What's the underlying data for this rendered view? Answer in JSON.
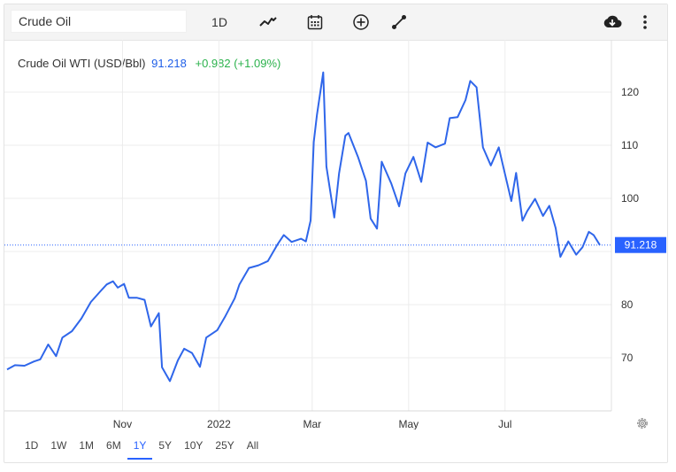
{
  "toolbar": {
    "search_value": "Crude Oil",
    "interval_label": "1D",
    "icons": [
      "line-type-icon",
      "calendar-icon",
      "add-indicator-icon",
      "draw-line-icon",
      "download-icon",
      "more-options-icon"
    ]
  },
  "legend": {
    "name": "Crude Oil WTI (USD/Bbl)",
    "value": "91.218",
    "change": "+0.982 (+1.09%)"
  },
  "colors": {
    "line": "#2f66ea",
    "price_tag": "#2962ff",
    "change_up": "#2bb24c"
  },
  "range_buttons": [
    "1D",
    "1W",
    "1M",
    "6M",
    "1Y",
    "5Y",
    "10Y",
    "25Y",
    "All"
  ],
  "active_range": "1Y",
  "chart_data": {
    "type": "line",
    "title": "Crude Oil WTI (USD/Bbl)",
    "xlabel": "",
    "ylabel": "",
    "ylim": [
      63.3,
      123.3
    ],
    "y_ticks": [
      70,
      80,
      100,
      110,
      120
    ],
    "y_tick_labels": [
      "70",
      "80",
      "100",
      "110",
      "120"
    ],
    "x_ticks": [
      {
        "label": "Nov",
        "date": "2021-11-01"
      },
      {
        "label": "2022",
        "date": "2022-01-01"
      },
      {
        "label": "Mar",
        "date": "2022-03-01"
      },
      {
        "label": "May",
        "date": "2022-05-01"
      },
      {
        "label": "Jul",
        "date": "2022-07-01"
      }
    ],
    "current_value_label": "91.218",
    "grid": true,
    "series": [
      {
        "name": "Crude Oil WTI",
        "points": [
          [
            "2021-08-20",
            67.8
          ],
          [
            "2021-08-25",
            68.6
          ],
          [
            "2021-08-31",
            68.5
          ],
          [
            "2021-09-06",
            69.3
          ],
          [
            "2021-09-10",
            69.7
          ],
          [
            "2021-09-15",
            72.5
          ],
          [
            "2021-09-20",
            70.3
          ],
          [
            "2021-09-24",
            73.8
          ],
          [
            "2021-09-30",
            75.0
          ],
          [
            "2021-10-06",
            77.4
          ],
          [
            "2021-10-12",
            80.5
          ],
          [
            "2021-10-18",
            82.5
          ],
          [
            "2021-10-22",
            83.8
          ],
          [
            "2021-10-26",
            84.4
          ],
          [
            "2021-10-29",
            83.2
          ],
          [
            "2021-11-02",
            83.9
          ],
          [
            "2021-11-05",
            81.3
          ],
          [
            "2021-11-10",
            81.3
          ],
          [
            "2021-11-15",
            80.9
          ],
          [
            "2021-11-19",
            75.9
          ],
          [
            "2021-11-24",
            78.4
          ],
          [
            "2021-11-26",
            68.2
          ],
          [
            "2021-12-01",
            65.6
          ],
          [
            "2021-12-06",
            69.5
          ],
          [
            "2021-12-10",
            71.7
          ],
          [
            "2021-12-15",
            70.9
          ],
          [
            "2021-12-20",
            68.3
          ],
          [
            "2021-12-24",
            73.8
          ],
          [
            "2021-12-31",
            75.2
          ],
          [
            "2022-01-05",
            77.8
          ],
          [
            "2022-01-11",
            81.2
          ],
          [
            "2022-01-14",
            83.8
          ],
          [
            "2022-01-20",
            86.9
          ],
          [
            "2022-01-26",
            87.4
          ],
          [
            "2022-02-01",
            88.2
          ],
          [
            "2022-02-07",
            91.3
          ],
          [
            "2022-02-11",
            93.1
          ],
          [
            "2022-02-16",
            91.8
          ],
          [
            "2022-02-22",
            92.4
          ],
          [
            "2022-02-25",
            91.9
          ],
          [
            "2022-02-28",
            95.8
          ],
          [
            "2022-03-02",
            110.6
          ],
          [
            "2022-03-04",
            115.7
          ],
          [
            "2022-03-08",
            123.7
          ],
          [
            "2022-03-10",
            106.0
          ],
          [
            "2022-03-15",
            96.4
          ],
          [
            "2022-03-18",
            104.7
          ],
          [
            "2022-03-22",
            111.8
          ],
          [
            "2022-03-24",
            112.3
          ],
          [
            "2022-03-30",
            107.8
          ],
          [
            "2022-04-04",
            103.3
          ],
          [
            "2022-04-07",
            96.2
          ],
          [
            "2022-04-11",
            94.3
          ],
          [
            "2022-04-14",
            106.9
          ],
          [
            "2022-04-20",
            102.8
          ],
          [
            "2022-04-25",
            98.5
          ],
          [
            "2022-04-29",
            104.7
          ],
          [
            "2022-05-04",
            107.8
          ],
          [
            "2022-05-09",
            103.1
          ],
          [
            "2022-05-13",
            110.5
          ],
          [
            "2022-05-18",
            109.6
          ],
          [
            "2022-05-24",
            110.3
          ],
          [
            "2022-05-27",
            115.1
          ],
          [
            "2022-06-01",
            115.3
          ],
          [
            "2022-06-06",
            118.5
          ],
          [
            "2022-06-09",
            122.1
          ],
          [
            "2022-06-13",
            120.9
          ],
          [
            "2022-06-17",
            109.6
          ],
          [
            "2022-06-22",
            106.2
          ],
          [
            "2022-06-27",
            109.6
          ],
          [
            "2022-06-30",
            105.8
          ],
          [
            "2022-07-05",
            99.5
          ],
          [
            "2022-07-08",
            104.8
          ],
          [
            "2022-07-12",
            95.8
          ],
          [
            "2022-07-15",
            97.6
          ],
          [
            "2022-07-20",
            99.9
          ],
          [
            "2022-07-25",
            96.7
          ],
          [
            "2022-07-29",
            98.6
          ],
          [
            "2022-08-02",
            94.4
          ],
          [
            "2022-08-05",
            89.0
          ],
          [
            "2022-08-10",
            91.9
          ],
          [
            "2022-08-15",
            89.4
          ],
          [
            "2022-08-19",
            90.8
          ],
          [
            "2022-08-23",
            93.7
          ],
          [
            "2022-08-26",
            93.1
          ],
          [
            "2022-08-30",
            91.2
          ]
        ]
      }
    ]
  }
}
